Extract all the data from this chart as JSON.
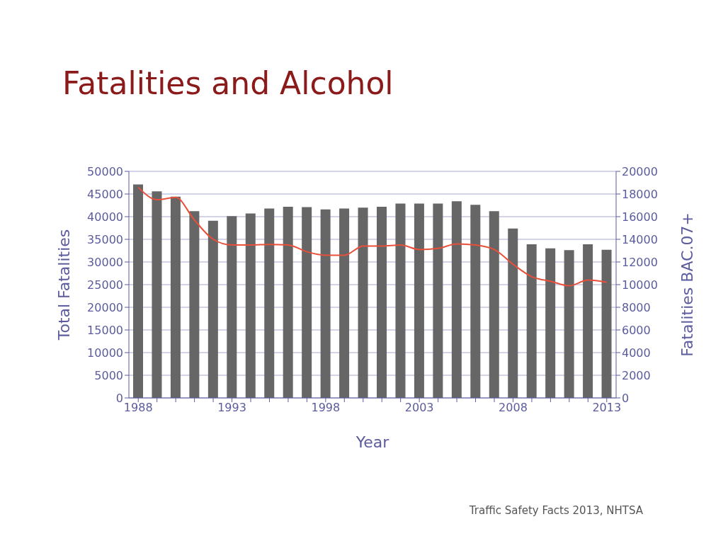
{
  "chart_data": {
    "type": "bar",
    "title": "Fatalities and Alcohol",
    "xlabel": "Year",
    "ylabel": "Total Fatalities",
    "y2label": "Fatalities BAC.07+",
    "categories": [
      "1988",
      null,
      null,
      null,
      null,
      "1993",
      null,
      null,
      null,
      null,
      "1998",
      null,
      null,
      null,
      null,
      "2003",
      null,
      null,
      null,
      null,
      "2008",
      null,
      null,
      null,
      null,
      "2013"
    ],
    "series": [
      {
        "color": "#666666",
        "values": [
          47100,
          45600,
          44400,
          41200,
          39100,
          40100,
          40700,
          41800,
          42200,
          42100,
          41600,
          41800,
          42000,
          42200,
          42900,
          42900,
          42900,
          43400,
          42600,
          41200,
          37400,
          33900,
          33000,
          32600,
          33900,
          32700
        ]
      },
      {
        "type": "line",
        "axis": "y2",
        "color": "#e8503a",
        "values": [
          18600,
          17500,
          17700,
          15700,
          14000,
          13500,
          13500,
          13550,
          13500,
          12900,
          12600,
          12600,
          13400,
          13400,
          13500,
          13100,
          13200,
          13600,
          13500,
          13100,
          11800,
          10700,
          10300,
          9900,
          10400,
          10200
        ]
      }
    ],
    "ylim": [
      0,
      50000
    ],
    "yticks": [
      0,
      5000,
      10000,
      15000,
      20000,
      25000,
      30000,
      35000,
      40000,
      45000,
      50000
    ],
    "y2lim": [
      0,
      20000
    ],
    "y2ticks": [
      0,
      2000,
      4000,
      6000,
      8000,
      10000,
      12000,
      14000,
      16000,
      18000,
      20000
    ],
    "grid": "y",
    "marker": "none",
    "line_style": "solid",
    "annotations": [
      "Traffic Safety Facts 2013, NHTSA"
    ]
  }
}
